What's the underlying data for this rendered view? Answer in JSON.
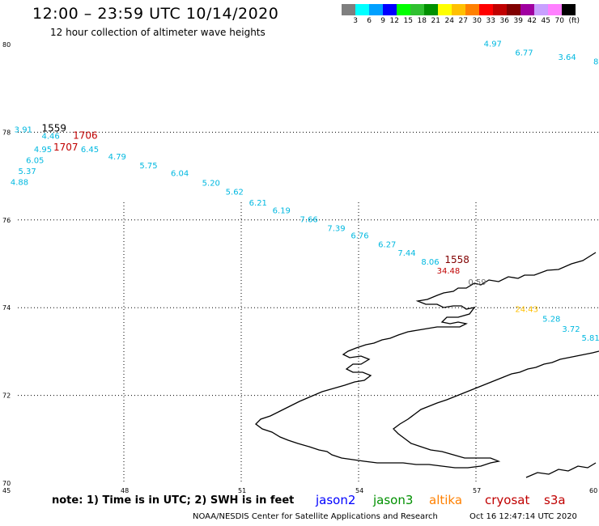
{
  "header": {
    "title": "12:00 – 23:59 UTC 10/14/2020",
    "subtitle": "12 hour collection of altimeter wave heights"
  },
  "colorbar": {
    "unit": "(ft)",
    "ticks": [
      "3",
      "6",
      "9",
      "12",
      "15",
      "18",
      "21",
      "24",
      "27",
      "30",
      "33",
      "36",
      "39",
      "42",
      "45",
      "70"
    ],
    "colors": [
      "#7f7f7f",
      "#00ffff",
      "#00a0ff",
      "#0000ff",
      "#00ff00",
      "#30c030",
      "#009000",
      "#ffff00",
      "#ffc000",
      "#ff8000",
      "#ff0000",
      "#c00000",
      "#800000",
      "#a000a0",
      "#c8a0ff",
      "#ff80ff",
      "#000000"
    ]
  },
  "map": {
    "lat_labels": [
      "80",
      "78",
      "76",
      "74",
      "72",
      "70"
    ],
    "lon_labels": [
      "45",
      "48",
      "51",
      "54",
      "57",
      "60"
    ],
    "land_color": "#000000"
  },
  "observations": [
    {
      "text": "4.97",
      "color": "#00b8e0",
      "lon": 57.2,
      "lat": 79.95
    },
    {
      "text": "6.77",
      "color": "#00b8e0",
      "lon": 58.0,
      "lat": 79.75
    },
    {
      "text": "3.64",
      "color": "#00b8e0",
      "lon": 59.1,
      "lat": 79.65
    },
    {
      "text": "8",
      "color": "#00b8e0",
      "lon": 60.0,
      "lat": 79.55
    },
    {
      "text": "3.91",
      "color": "#00b8e0",
      "lon": 45.2,
      "lat": 78.0
    },
    {
      "text": "4.46",
      "color": "#00b8e0",
      "lon": 45.9,
      "lat": 77.85
    },
    {
      "text": "4.95",
      "color": "#00b8e0",
      "lon": 45.7,
      "lat": 77.55
    },
    {
      "text": "6.45",
      "color": "#00b8e0",
      "lon": 46.9,
      "lat": 77.55
    },
    {
      "text": "6.05",
      "color": "#00b8e0",
      "lon": 45.5,
      "lat": 77.3
    },
    {
      "text": "5.37",
      "color": "#00b8e0",
      "lon": 45.3,
      "lat": 77.05
    },
    {
      "text": "4.88",
      "color": "#00b8e0",
      "lon": 45.1,
      "lat": 76.8
    },
    {
      "text": "4.79",
      "color": "#00b8e0",
      "lon": 47.6,
      "lat": 77.38
    },
    {
      "text": "5.75",
      "color": "#00b8e0",
      "lon": 48.4,
      "lat": 77.18
    },
    {
      "text": "6.04",
      "color": "#00b8e0",
      "lon": 49.2,
      "lat": 77.0
    },
    {
      "text": "5.20",
      "color": "#00b8e0",
      "lon": 50.0,
      "lat": 76.78
    },
    {
      "text": "5.62",
      "color": "#00b8e0",
      "lon": 50.6,
      "lat": 76.58
    },
    {
      "text": "6.21",
      "color": "#00b8e0",
      "lon": 51.2,
      "lat": 76.33
    },
    {
      "text": "6.19",
      "color": "#00b8e0",
      "lon": 51.8,
      "lat": 76.15
    },
    {
      "text": "7.66",
      "color": "#00b8e0",
      "lon": 52.5,
      "lat": 75.95
    },
    {
      "text": "7.39",
      "color": "#00b8e0",
      "lon": 53.2,
      "lat": 75.75
    },
    {
      "text": "6.76",
      "color": "#00b8e0",
      "lon": 53.8,
      "lat": 75.58
    },
    {
      "text": "6.27",
      "color": "#00b8e0",
      "lon": 54.5,
      "lat": 75.38
    },
    {
      "text": "7.44",
      "color": "#00b8e0",
      "lon": 55.0,
      "lat": 75.18
    },
    {
      "text": "8.06",
      "color": "#00b8e0",
      "lon": 55.6,
      "lat": 74.98
    },
    {
      "text": "34.48",
      "color": "#c00000",
      "lon": 56.0,
      "lat": 74.78
    },
    {
      "text": "0.59",
      "color": "#707070",
      "lon": 56.8,
      "lat": 74.52
    },
    {
      "text": "24.43",
      "color": "#ffc000",
      "lon": 58.0,
      "lat": 73.9
    },
    {
      "text": "5.28",
      "color": "#00b8e0",
      "lon": 58.7,
      "lat": 73.68
    },
    {
      "text": "3.72",
      "color": "#00b8e0",
      "lon": 59.2,
      "lat": 73.45
    },
    {
      "text": "5.81",
      "color": "#00b8e0",
      "lon": 59.7,
      "lat": 73.25
    }
  ],
  "pass_times": [
    {
      "text": "1559",
      "color": "#000000",
      "lon": 45.9,
      "lat": 78.02
    },
    {
      "text": "1706",
      "color": "#c00000",
      "lon": 46.7,
      "lat": 77.85
    },
    {
      "text": "1707",
      "color": "#c00000",
      "lon": 46.2,
      "lat": 77.58
    },
    {
      "text": "1558",
      "color": "#800000",
      "lon": 56.2,
      "lat": 75.02
    }
  ],
  "footer": {
    "note": "note:  1) Time is in UTC;  2) SWH is in feet",
    "satellites": [
      {
        "name": "jason2",
        "color": "#0000ff"
      },
      {
        "name": "jason3",
        "color": "#009000"
      },
      {
        "name": "altika",
        "color": "#ff8000"
      },
      {
        "name": "cryosat",
        "color": "#c00000"
      },
      {
        "name": "s3a",
        "color": "#c00000"
      }
    ],
    "credit": "NOAA/NESDIS Center for Satellite Applications and Research",
    "timestamp": "Oct 16 12:47:14 UTC 2020"
  }
}
